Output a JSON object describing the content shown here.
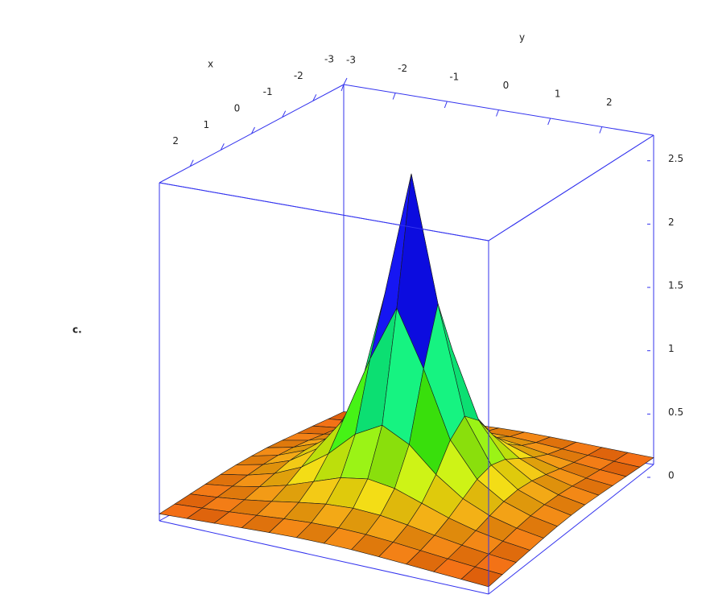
{
  "chart_data": {
    "type": "surface",
    "label": "c.",
    "xlabel": "x",
    "ylabel": "y",
    "box_color": "#3333ee",
    "xlim": [
      -3,
      3
    ],
    "ylim": [
      -3,
      3
    ],
    "zlim": [
      0,
      2.6
    ],
    "xticks": [
      -3,
      -2,
      -1,
      0,
      1,
      2
    ],
    "yticks": [
      -3,
      -2,
      -1,
      0,
      1,
      2
    ],
    "zticks": [
      0,
      0.5,
      1,
      1.5,
      2,
      2.5
    ],
    "x": [
      -3,
      -2.5,
      -2,
      -1.5,
      -1,
      -0.5,
      0,
      0.5,
      1,
      1.5,
      2,
      2.5,
      3
    ],
    "y": [
      -3,
      -2.5,
      -2,
      -1.5,
      -1,
      -0.5,
      0,
      0.5,
      1,
      1.5,
      2,
      2.5,
      3
    ],
    "z": [
      [
        0.054,
        0.064,
        0.075,
        0.086,
        0.096,
        0.104,
        0.106,
        0.104,
        0.096,
        0.086,
        0.075,
        0.064,
        0.054
      ],
      [
        0.064,
        0.078,
        0.094,
        0.112,
        0.131,
        0.145,
        0.15,
        0.145,
        0.131,
        0.112,
        0.094,
        0.078,
        0.064
      ],
      [
        0.075,
        0.094,
        0.119,
        0.15,
        0.185,
        0.215,
        0.227,
        0.215,
        0.185,
        0.15,
        0.119,
        0.094,
        0.075
      ],
      [
        0.086,
        0.112,
        0.15,
        0.204,
        0.274,
        0.345,
        0.377,
        0.345,
        0.274,
        0.204,
        0.15,
        0.112,
        0.086
      ],
      [
        0.096,
        0.131,
        0.185,
        0.274,
        0.417,
        0.606,
        0.714,
        0.606,
        0.417,
        0.274,
        0.185,
        0.131,
        0.096
      ],
      [
        0.104,
        0.145,
        0.215,
        0.345,
        0.606,
        1.111,
        1.538,
        1.111,
        0.606,
        0.345,
        0.215,
        0.145,
        0.104
      ],
      [
        0.106,
        0.15,
        0.227,
        0.377,
        0.714,
        1.538,
        2.5,
        1.538,
        0.714,
        0.377,
        0.227,
        0.15,
        0.106
      ],
      [
        0.104,
        0.145,
        0.215,
        0.345,
        0.606,
        1.111,
        1.538,
        1.111,
        0.606,
        0.345,
        0.215,
        0.145,
        0.104
      ],
      [
        0.096,
        0.131,
        0.185,
        0.274,
        0.417,
        0.606,
        0.714,
        0.606,
        0.417,
        0.274,
        0.185,
        0.131,
        0.096
      ],
      [
        0.086,
        0.112,
        0.15,
        0.204,
        0.274,
        0.345,
        0.377,
        0.345,
        0.274,
        0.204,
        0.15,
        0.112,
        0.086
      ],
      [
        0.075,
        0.094,
        0.119,
        0.15,
        0.185,
        0.215,
        0.227,
        0.215,
        0.185,
        0.15,
        0.119,
        0.094,
        0.075
      ],
      [
        0.064,
        0.078,
        0.094,
        0.112,
        0.131,
        0.145,
        0.15,
        0.145,
        0.131,
        0.112,
        0.094,
        0.078,
        0.064
      ],
      [
        0.054,
        0.064,
        0.075,
        0.086,
        0.096,
        0.104,
        0.106,
        0.104,
        0.096,
        0.086,
        0.075,
        0.064,
        0.054
      ]
    ]
  }
}
